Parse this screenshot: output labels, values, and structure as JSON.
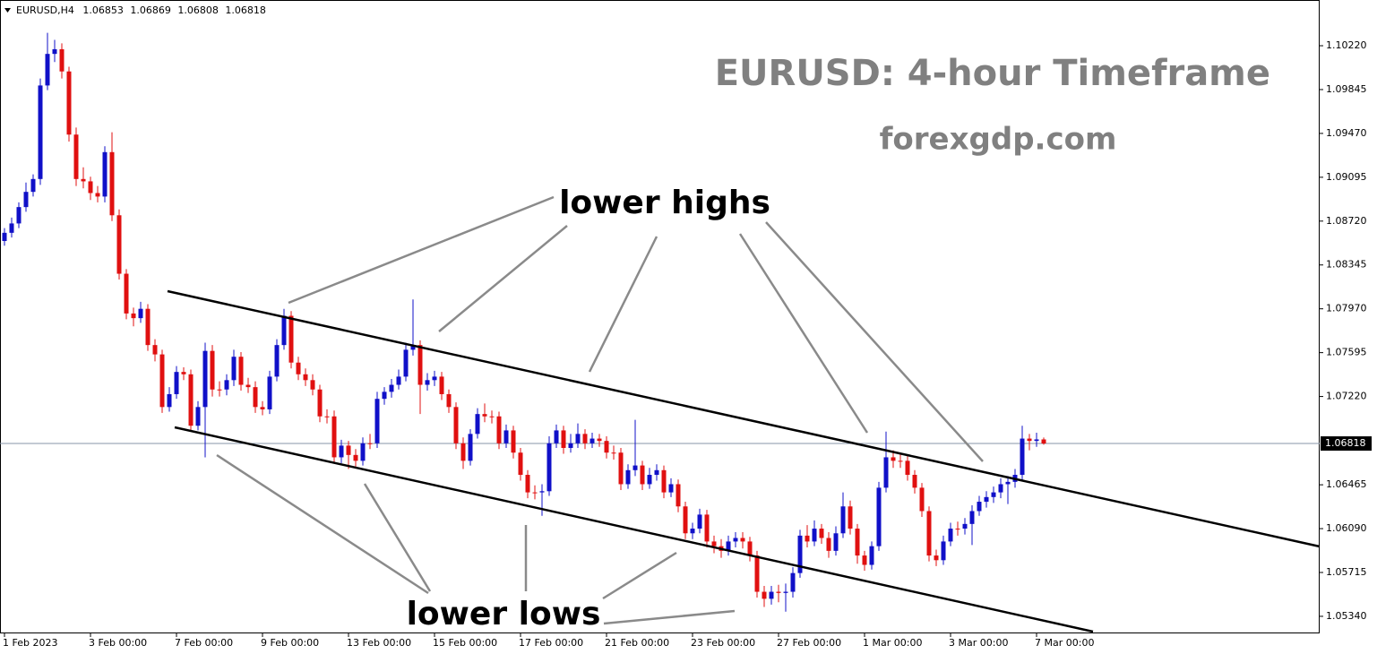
{
  "chart_data": {
    "type": "candlestick",
    "symbol": "EURUSD,H4",
    "title": "EURUSD: 4-hour Timeframe",
    "subtitle": "forexgdp.com",
    "annotations": [
      "lower highs",
      "lower lows"
    ],
    "up_color": "#1010c8",
    "down_color": "#e01010",
    "price_line_color": "#8796a8",
    "categories": [
      "1 Feb 2023",
      null,
      null,
      null,
      null,
      null,
      null,
      null,
      null,
      null,
      null,
      null,
      "3 Feb 00:00",
      null,
      null,
      null,
      null,
      null,
      null,
      null,
      null,
      null,
      null,
      null,
      "7 Feb 00:00",
      null,
      null,
      null,
      null,
      null,
      null,
      null,
      null,
      null,
      null,
      null,
      "9 Feb 00:00",
      null,
      null,
      null,
      null,
      null,
      null,
      null,
      null,
      null,
      null,
      null,
      "13 Feb 00:00",
      null,
      null,
      null,
      null,
      null,
      null,
      null,
      null,
      null,
      null,
      null,
      "15 Feb 00:00",
      null,
      null,
      null,
      null,
      null,
      null,
      null,
      null,
      null,
      null,
      null,
      "17 Feb 00:00",
      null,
      null,
      null,
      null,
      null,
      null,
      null,
      null,
      null,
      null,
      null,
      "21 Feb 00:00",
      null,
      null,
      null,
      null,
      null,
      null,
      null,
      null,
      null,
      null,
      null,
      "23 Feb 00:00",
      null,
      null,
      null,
      null,
      null,
      null,
      null,
      null,
      null,
      null,
      null,
      "27 Feb 00:00",
      null,
      null,
      null,
      null,
      null,
      null,
      null,
      null,
      null,
      null,
      null,
      "1 Mar 00:00",
      null,
      null,
      null,
      null,
      null,
      null,
      null,
      null,
      null,
      null,
      null,
      "3 Mar 00:00",
      null,
      null,
      null,
      null,
      null,
      null,
      null,
      null,
      null,
      null,
      null,
      "7 Mar 00:00",
      null
    ],
    "open": [
      1.0855,
      1.0862,
      1.087,
      1.0884,
      1.0897,
      1.0908,
      1.0988,
      1.1015,
      1.1019,
      1.1,
      1.0946,
      1.0908,
      1.0906,
      1.0896,
      1.0893,
      1.0931,
      1.0877,
      1.0827,
      1.0793,
      1.0789,
      1.0797,
      1.0766,
      1.0758,
      1.0713,
      1.0724,
      1.0743,
      1.0741,
      1.0697,
      1.0713,
      1.0761,
      1.0728,
      1.0728,
      1.0736,
      1.0756,
      1.0732,
      1.073,
      1.0713,
      1.0711,
      1.0739,
      1.0766,
      1.0791,
      1.0751,
      1.0741,
      1.0736,
      1.0728,
      1.0705,
      1.0705,
      1.067,
      1.068,
      1.0672,
      1.0667,
      1.0682,
      1.0682,
      1.072,
      1.0726,
      1.0732,
      1.0739,
      1.0762,
      1.0766,
      1.0732,
      1.0736,
      1.0739,
      1.0724,
      1.0713,
      1.0682,
      1.0667,
      1.069,
      1.0707,
      1.0705,
      1.0705,
      1.0682,
      1.0693,
      1.0674,
      1.0655,
      1.064,
      1.064,
      1.0641,
      1.0682,
      1.0693,
      1.0678,
      1.0682,
      1.069,
      1.0682,
      1.0686,
      1.0684,
      1.0674,
      1.0674,
      1.0647,
      1.0659,
      1.0663,
      1.0647,
      1.0655,
      1.0659,
      1.064,
      1.0647,
      1.0628,
      1.0605,
      1.0609,
      1.0621,
      1.0598,
      1.0594,
      1.059,
      1.0598,
      1.0601,
      1.0598,
      1.0586,
      1.0555,
      1.0549,
      1.0555,
      1.0554,
      1.0555,
      1.0571,
      1.0603,
      1.0598,
      1.0609,
      1.0601,
      1.059,
      1.0605,
      1.0628,
      1.0609,
      1.0586,
      1.0578,
      1.0594,
      1.0644,
      1.067,
      1.0667,
      1.0667,
      1.0655,
      1.0644,
      1.0624,
      1.0586,
      1.0582,
      1.0598,
      1.0609,
      1.0609,
      1.0613,
      1.0624,
      1.0632,
      1.0636,
      1.064,
      1.0647,
      1.0649,
      1.0655,
      1.0686,
      1.0684,
      1.06853
    ],
    "high": [
      1.0866,
      1.0875,
      1.0888,
      1.0905,
      1.0912,
      1.0994,
      1.1033,
      1.1027,
      1.1024,
      1.1004,
      1.0952,
      1.0918,
      1.091,
      1.0902,
      1.0936,
      1.0948,
      1.0882,
      1.0831,
      1.0798,
      1.0803,
      1.0801,
      1.0771,
      1.0762,
      1.073,
      1.0748,
      1.0747,
      1.0745,
      1.0718,
      1.0768,
      1.0766,
      1.0735,
      1.0741,
      1.0762,
      1.076,
      1.0738,
      1.0735,
      1.0718,
      1.0744,
      1.0771,
      1.0797,
      1.0795,
      1.0756,
      1.0746,
      1.0741,
      1.0732,
      1.0711,
      1.071,
      1.0685,
      1.0684,
      1.0677,
      1.0687,
      1.069,
      1.0726,
      1.073,
      1.0737,
      1.0745,
      1.0768,
      1.0805,
      1.077,
      1.0742,
      1.0744,
      1.0743,
      1.0728,
      1.0717,
      1.0687,
      1.0694,
      1.0712,
      1.0716,
      1.071,
      1.0709,
      1.0698,
      1.0697,
      1.0678,
      1.0659,
      1.0646,
      1.0647,
      1.0688,
      1.0698,
      1.0697,
      1.069,
      1.0699,
      1.0694,
      1.0691,
      1.069,
      1.0688,
      1.068,
      1.0678,
      1.0664,
      1.0702,
      1.0667,
      1.0661,
      1.0664,
      1.0663,
      1.0652,
      1.0651,
      1.0632,
      1.0614,
      1.0626,
      1.0625,
      1.0603,
      1.06,
      1.0603,
      1.0606,
      1.0606,
      1.0602,
      1.059,
      1.056,
      1.056,
      1.0561,
      1.0562,
      1.0576,
      1.0608,
      1.0612,
      1.0616,
      1.0613,
      1.0606,
      1.0611,
      1.064,
      1.0633,
      1.0613,
      1.059,
      1.0598,
      1.0649,
      1.0692,
      1.0676,
      1.0674,
      1.0671,
      1.0659,
      1.0648,
      1.0628,
      1.0591,
      1.0603,
      1.0614,
      1.0615,
      1.0618,
      1.0629,
      1.0637,
      1.0641,
      1.0645,
      1.0652,
      1.0654,
      1.066,
      1.0697,
      1.069,
      1.0691,
      1.06869
    ],
    "low": [
      1.0851,
      1.0858,
      1.0866,
      1.088,
      1.0893,
      1.0903,
      1.0984,
      1.1008,
      1.0994,
      1.094,
      1.0902,
      1.09,
      1.089,
      1.0888,
      1.0888,
      1.0872,
      1.0822,
      1.0788,
      1.0782,
      1.0785,
      1.0761,
      1.0752,
      1.0708,
      1.0709,
      1.072,
      1.0736,
      1.0692,
      1.0693,
      1.067,
      1.0722,
      1.0722,
      1.0723,
      1.0731,
      1.0727,
      1.0725,
      1.0708,
      1.0706,
      1.0707,
      1.0735,
      1.0762,
      1.0746,
      1.0736,
      1.0731,
      1.0723,
      1.07,
      1.0699,
      1.0665,
      1.0665,
      1.066,
      1.0662,
      1.0663,
      1.0677,
      1.0678,
      1.0715,
      1.0721,
      1.0728,
      1.0735,
      1.0757,
      1.0707,
      1.0727,
      1.0731,
      1.0719,
      1.0708,
      1.0677,
      1.066,
      1.0663,
      1.0686,
      1.07,
      1.0699,
      1.0677,
      1.0678,
      1.0669,
      1.065,
      1.0635,
      1.0634,
      1.062,
      1.0637,
      1.0678,
      1.0673,
      1.0674,
      1.0678,
      1.0677,
      1.0678,
      1.0679,
      1.0669,
      1.0668,
      1.0642,
      1.0643,
      1.0654,
      1.0642,
      1.0643,
      1.065,
      1.0635,
      1.0636,
      1.0623,
      1.06,
      1.06,
      1.0605,
      1.0593,
      1.0588,
      1.0584,
      1.0586,
      1.0593,
      1.0592,
      1.0581,
      1.055,
      1.0542,
      1.0544,
      1.0546,
      1.0538,
      1.055,
      1.0567,
      1.0593,
      1.0594,
      1.0596,
      1.0584,
      1.0586,
      1.0601,
      1.0604,
      1.0579,
      1.0573,
      1.0574,
      1.059,
      1.064,
      1.0661,
      1.0661,
      1.065,
      1.0639,
      1.0619,
      1.0581,
      1.0577,
      1.0578,
      1.0594,
      1.0603,
      1.0604,
      1.0595,
      1.062,
      1.0627,
      1.0631,
      1.0635,
      1.063,
      1.0644,
      1.065,
      1.0676,
      1.0679,
      1.06808
    ],
    "close": [
      1.0862,
      1.087,
      1.0884,
      1.0897,
      1.0908,
      1.0988,
      1.1015,
      1.1019,
      1.1,
      1.0946,
      1.0908,
      1.0906,
      1.0896,
      1.0893,
      1.0931,
      1.0877,
      1.0827,
      1.0793,
      1.0789,
      1.0797,
      1.0766,
      1.0758,
      1.0713,
      1.0724,
      1.0743,
      1.0741,
      1.0697,
      1.0713,
      1.0761,
      1.0728,
      1.0728,
      1.0736,
      1.0756,
      1.0732,
      1.073,
      1.0713,
      1.0711,
      1.0739,
      1.0766,
      1.0791,
      1.0751,
      1.0741,
      1.0736,
      1.0728,
      1.0705,
      1.0705,
      1.067,
      1.068,
      1.0672,
      1.0667,
      1.0682,
      1.0682,
      1.072,
      1.0726,
      1.0732,
      1.0739,
      1.0762,
      1.0766,
      1.0732,
      1.0736,
      1.0739,
      1.0724,
      1.0713,
      1.0682,
      1.0667,
      1.069,
      1.0707,
      1.0705,
      1.0705,
      1.0682,
      1.0693,
      1.0674,
      1.0655,
      1.064,
      1.064,
      1.0641,
      1.0682,
      1.0693,
      1.0678,
      1.0682,
      1.069,
      1.0682,
      1.0686,
      1.0684,
      1.0674,
      1.0674,
      1.0647,
      1.0659,
      1.0663,
      1.0647,
      1.0655,
      1.0659,
      1.064,
      1.0647,
      1.0628,
      1.0605,
      1.0609,
      1.0621,
      1.0598,
      1.0594,
      1.059,
      1.0598,
      1.0601,
      1.0598,
      1.0586,
      1.0555,
      1.0549,
      1.0555,
      1.0554,
      1.0555,
      1.0571,
      1.0603,
      1.0598,
      1.0609,
      1.0601,
      1.059,
      1.0605,
      1.0628,
      1.0609,
      1.0586,
      1.0578,
      1.0594,
      1.0644,
      1.067,
      1.0667,
      1.0667,
      1.0655,
      1.0644,
      1.0624,
      1.0586,
      1.0582,
      1.0598,
      1.0609,
      1.0609,
      1.0613,
      1.0624,
      1.0632,
      1.0636,
      1.064,
      1.0647,
      1.0649,
      1.0655,
      1.0686,
      1.0684,
      1.06853,
      1.06818
    ],
    "ylim": [
      1.05194,
      1.10611
    ],
    "yticks": [
      {
        "value": 1.1022,
        "label": "1.10220"
      },
      1.09845,
      {
        "value": 1.0947,
        "label": "1.09470"
      },
      1.09095,
      {
        "value": 1.0872,
        "label": "1.08720"
      },
      1.08345,
      {
        "value": 1.0797,
        "label": "1.07970"
      },
      1.07595,
      {
        "value": 1.0722,
        "label": "1.07220"
      },
      1.06465,
      {
        "value": 1.0609,
        "label": "1.06090"
      },
      1.05715,
      {
        "value": 1.0534,
        "label": "1.05340"
      }
    ],
    "grid": false
  }
}
